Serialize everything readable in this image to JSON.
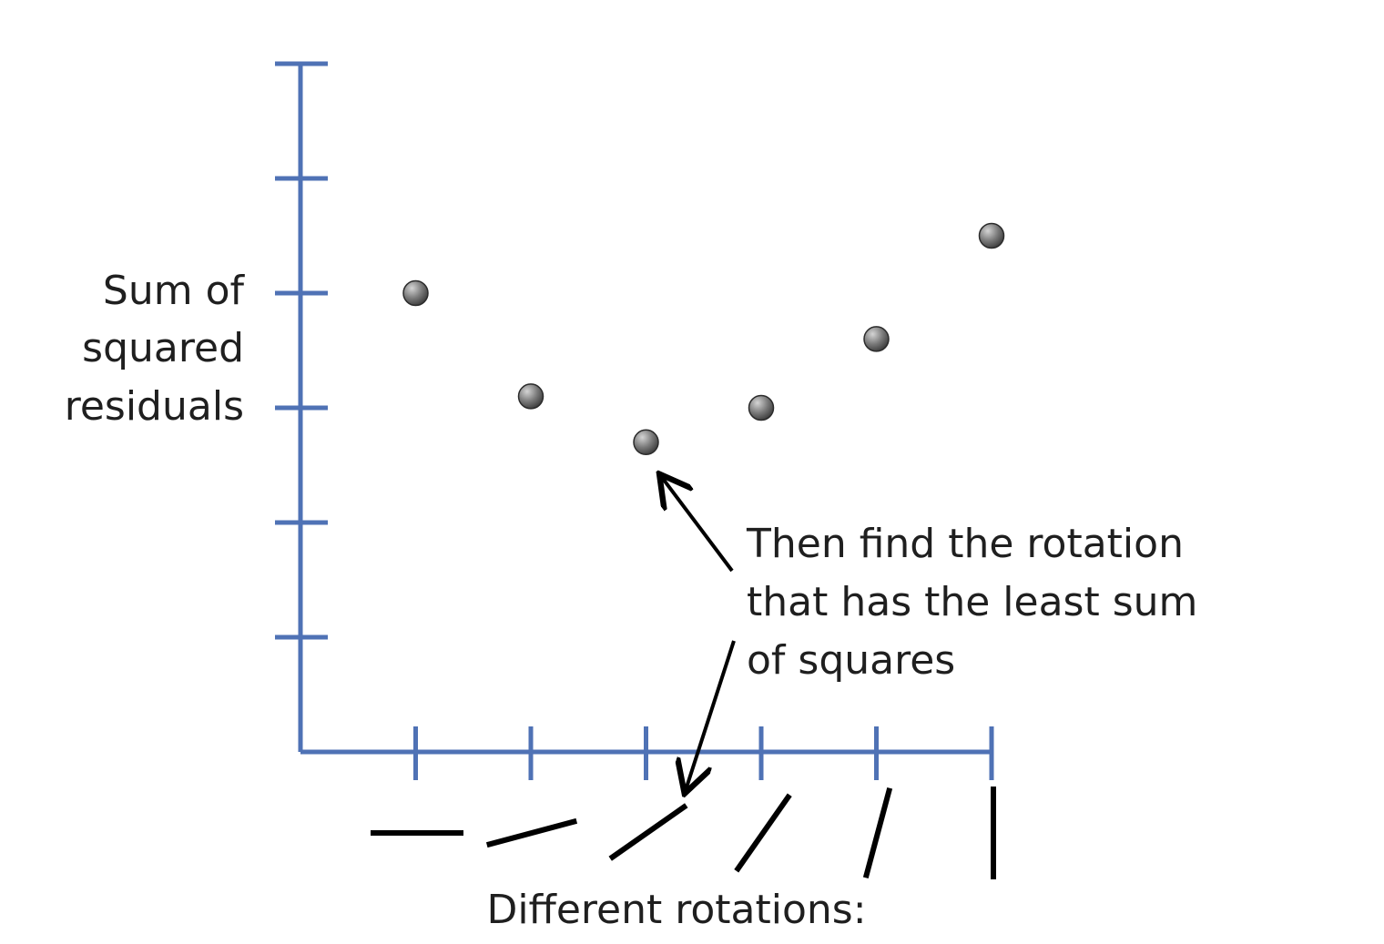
{
  "chart_data": {
    "type": "scatter",
    "title": "",
    "ylabel_lines": [
      "Sum of",
      "squared",
      "residuals"
    ],
    "xlabel": "Different rotations:",
    "annotation": {
      "lines": [
        "Then find the rotation",
        "that has the least sum",
        "of squares"
      ],
      "points_to_index": 2
    },
    "x": [
      1,
      2,
      3,
      4,
      5,
      6
    ],
    "y": [
      4.0,
      3.1,
      2.7,
      3.0,
      3.6,
      4.5
    ],
    "xlim": [
      0,
      6
    ],
    "ylim": [
      0,
      6
    ],
    "rotation_angles_deg": [
      0,
      15,
      35,
      55,
      75,
      90
    ],
    "grid": false,
    "legend": "none",
    "colors": {
      "axis": "#4f72b5",
      "point": "#6e6e6e",
      "point_edge": "#2b2b2b",
      "rotation_line": "#000000",
      "text": "#1f1f1f"
    }
  }
}
